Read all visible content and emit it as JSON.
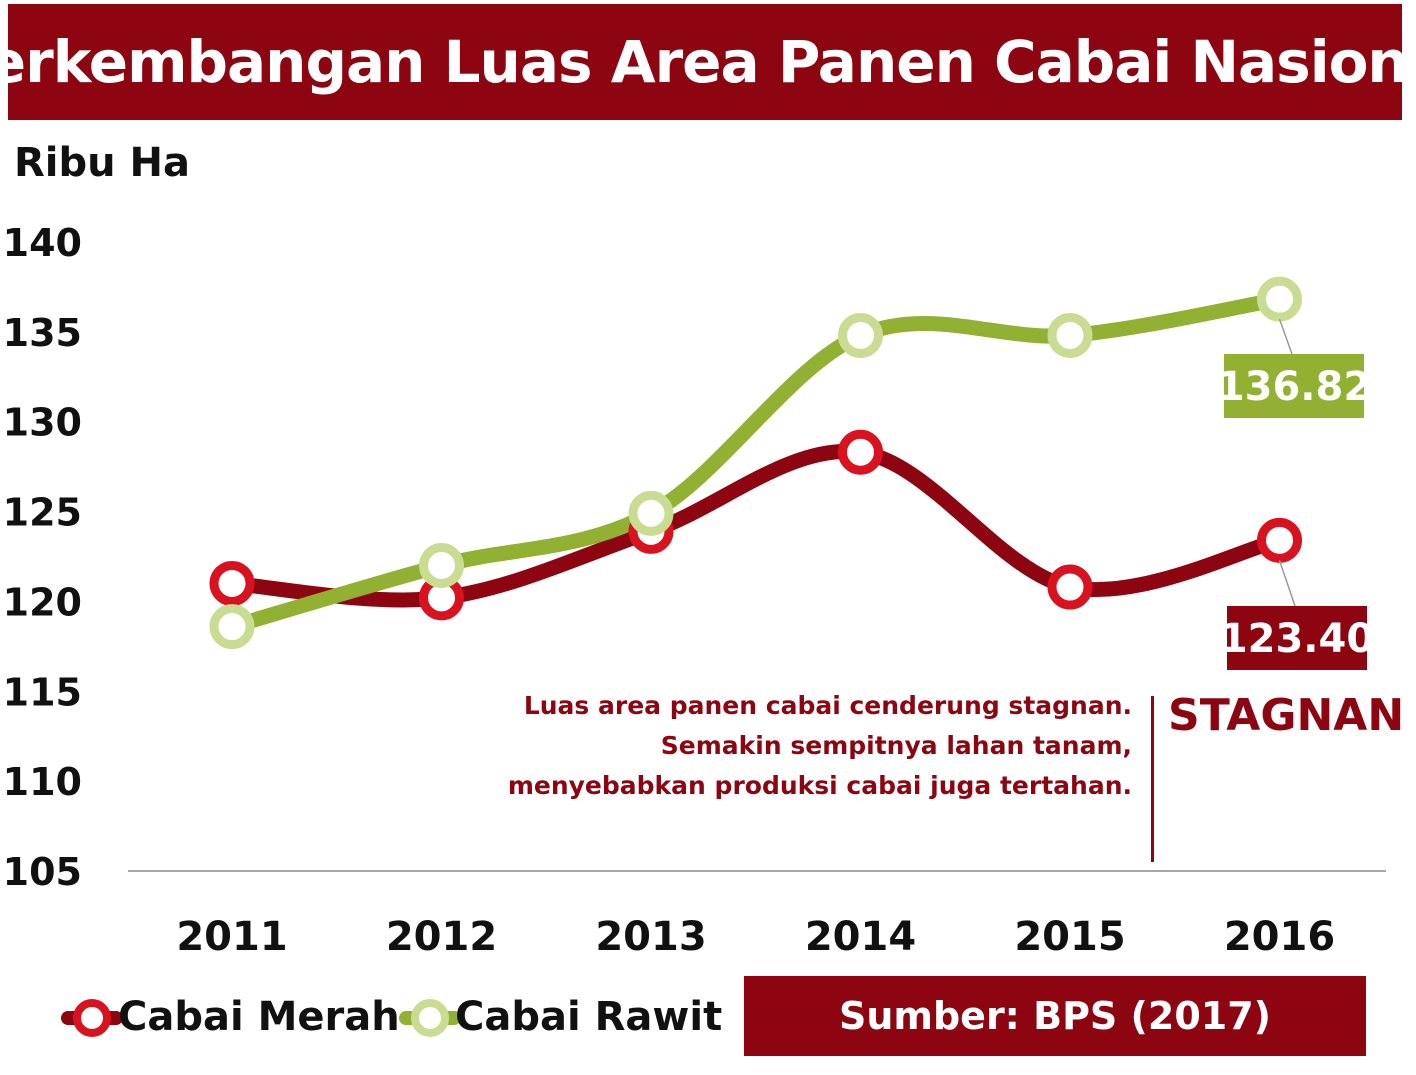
{
  "title": "Perkembangan Luas Area Panen Cabai Nasional",
  "source": "Sumber: BPS (2017)",
  "annotation": {
    "lines": [
      "Luas area panen cabai cenderung stagnan.",
      "Semakin sempitnya lahan tanam,",
      "menyebabkan produksi cabai juga tertahan."
    ],
    "tag": "STAGNAN"
  },
  "colors": {
    "title_bg": "#8c0510",
    "merah_line": "#8c0510",
    "merah_marker": "#d8121f",
    "rawit_line": "#92b032",
    "rawit_marker": "#c9dc92",
    "rawit_label_bg": "#92b032",
    "merah_label_bg": "#8c0510"
  },
  "chart_data": {
    "type": "line",
    "title": "Perkembangan Luas Area Panen Cabai Nasional",
    "ylabel": "Ribu Ha",
    "xlabel": "",
    "categories": [
      "2011",
      "2012",
      "2013",
      "2014",
      "2015",
      "2016"
    ],
    "yticks": [
      105,
      110,
      115,
      120,
      125,
      130,
      135,
      140
    ],
    "ylim": [
      105,
      140
    ],
    "grid": false,
    "legend_position": "bottom-left",
    "series": [
      {
        "name": "Cabai Merah",
        "values": [
          121.0,
          120.2,
          123.9,
          128.3,
          120.8,
          123.4
        ],
        "end_label": "123.40"
      },
      {
        "name": "Cabai Rawit",
        "values": [
          118.6,
          122.0,
          124.9,
          134.8,
          134.8,
          136.82
        ],
        "end_label": "136.82"
      }
    ]
  }
}
